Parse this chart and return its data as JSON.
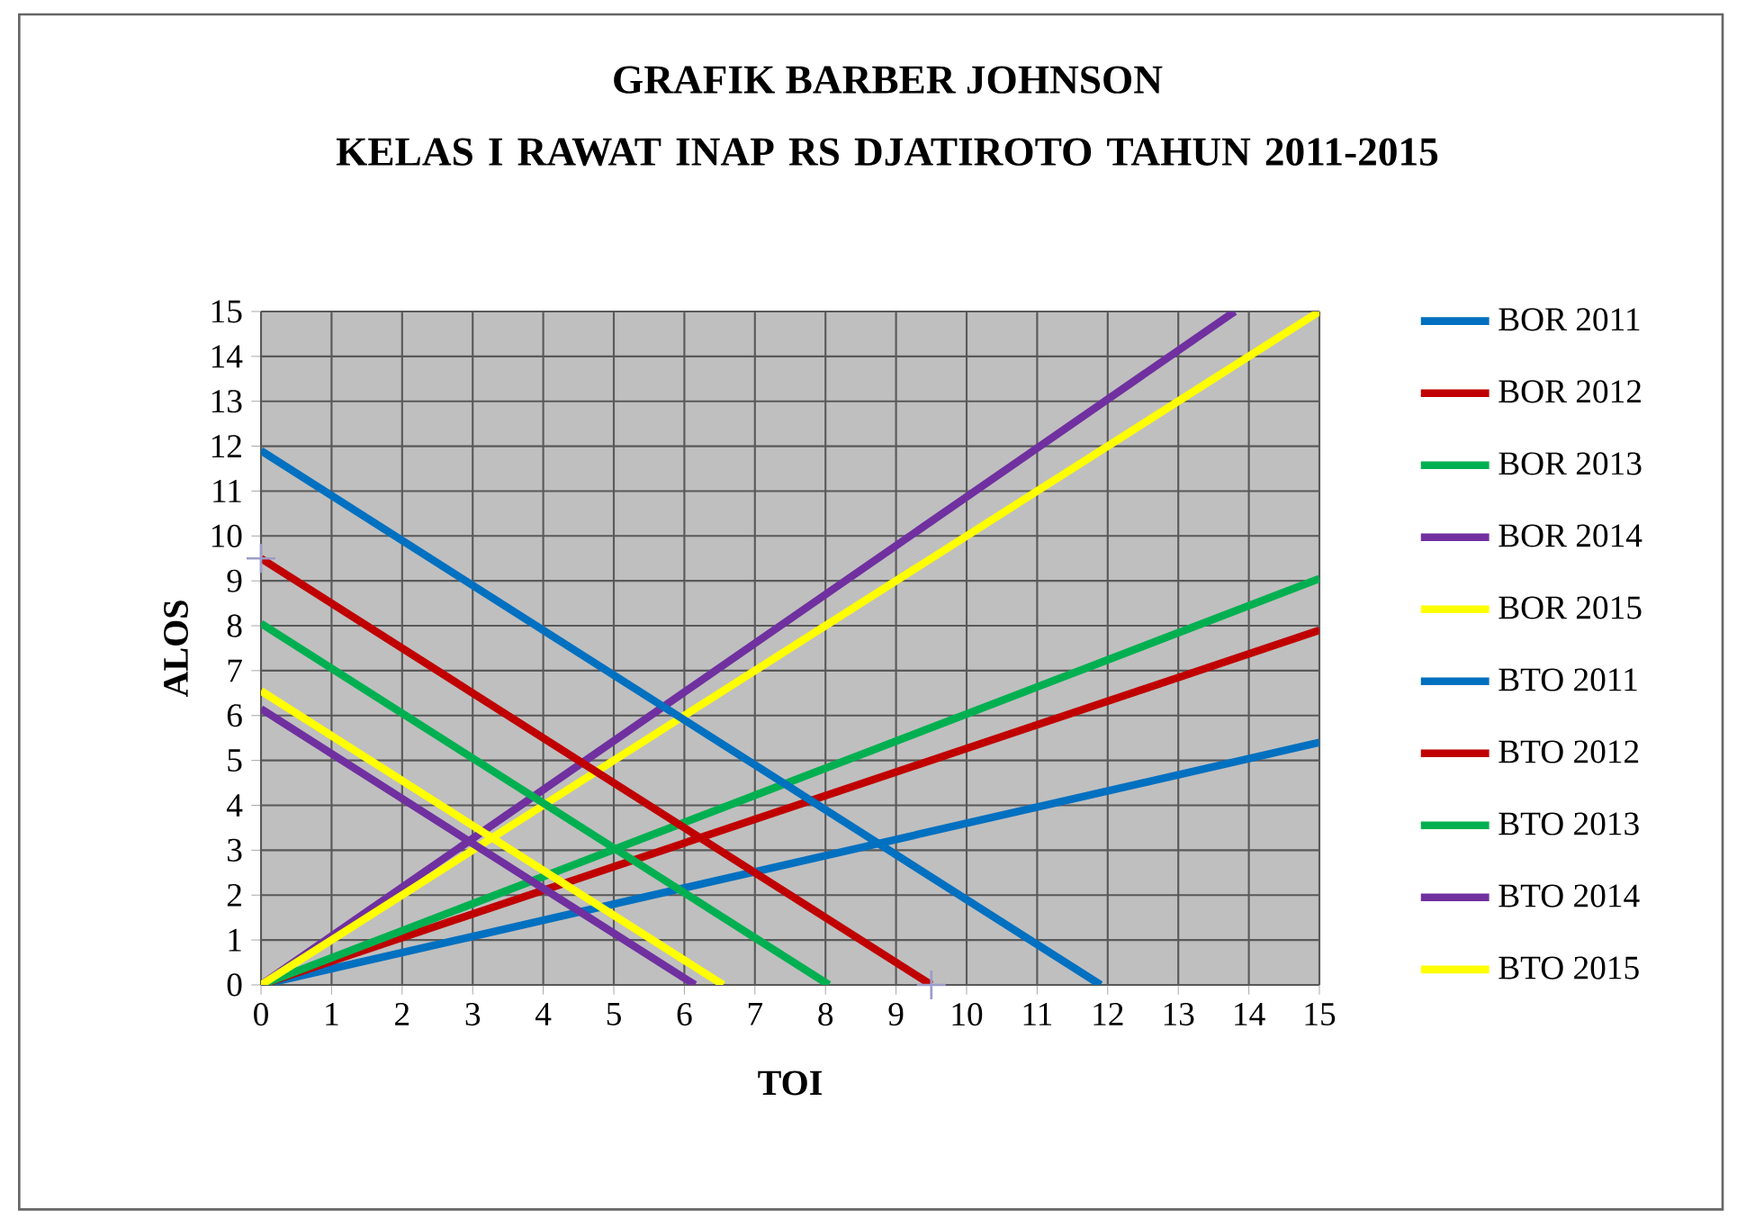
{
  "chart_data": {
    "type": "line",
    "title": "GRAFIK BARBER JOHNSON",
    "subtitle": "KELAS I RAWAT INAP RS DJATIROTO TAHUN 2011-2015",
    "xlabel": "TOI",
    "ylabel": "ALOS",
    "xlim": [
      0,
      15
    ],
    "ylim": [
      0,
      15
    ],
    "xticks": [
      0,
      1,
      2,
      3,
      4,
      5,
      6,
      7,
      8,
      9,
      10,
      11,
      12,
      13,
      14,
      15
    ],
    "yticks": [
      0,
      1,
      2,
      3,
      4,
      5,
      6,
      7,
      8,
      9,
      10,
      11,
      12,
      13,
      14,
      15
    ],
    "grid": true,
    "legend": "right",
    "marker": "none",
    "line_style": "solid",
    "series": [
      {
        "name": "BOR 2011",
        "color": "#0070c0",
        "x": [
          0,
          15
        ],
        "values": [
          0,
          5.4
        ]
      },
      {
        "name": "BOR 2012",
        "color": "#c00000",
        "x": [
          0,
          15
        ],
        "values": [
          0,
          7.9
        ]
      },
      {
        "name": "BOR 2013",
        "color": "#00b050",
        "x": [
          0,
          15
        ],
        "values": [
          0,
          9.05
        ]
      },
      {
        "name": "BOR 2014",
        "color": "#7030a0",
        "x": [
          0,
          13.8
        ],
        "values": [
          0,
          15
        ]
      },
      {
        "name": "BOR 2015",
        "color": "#ffff00",
        "x": [
          0,
          15
        ],
        "values": [
          0,
          15
        ]
      },
      {
        "name": "BTO 2011",
        "color": "#0070c0",
        "x": [
          0,
          11.9
        ],
        "values": [
          11.9,
          0
        ]
      },
      {
        "name": "BTO 2012",
        "color": "#c00000",
        "x": [
          0,
          9.5
        ],
        "values": [
          9.5,
          0
        ],
        "marker": "cross"
      },
      {
        "name": "BTO 2013",
        "color": "#00b050",
        "x": [
          0,
          8.05
        ],
        "values": [
          8.05,
          0
        ]
      },
      {
        "name": "BTO 2014",
        "color": "#7030a0",
        "x": [
          0,
          6.15
        ],
        "values": [
          6.15,
          0
        ]
      },
      {
        "name": "BTO 2015",
        "color": "#ffff00",
        "x": [
          0,
          6.55
        ],
        "values": [
          6.55,
          0
        ]
      }
    ]
  }
}
